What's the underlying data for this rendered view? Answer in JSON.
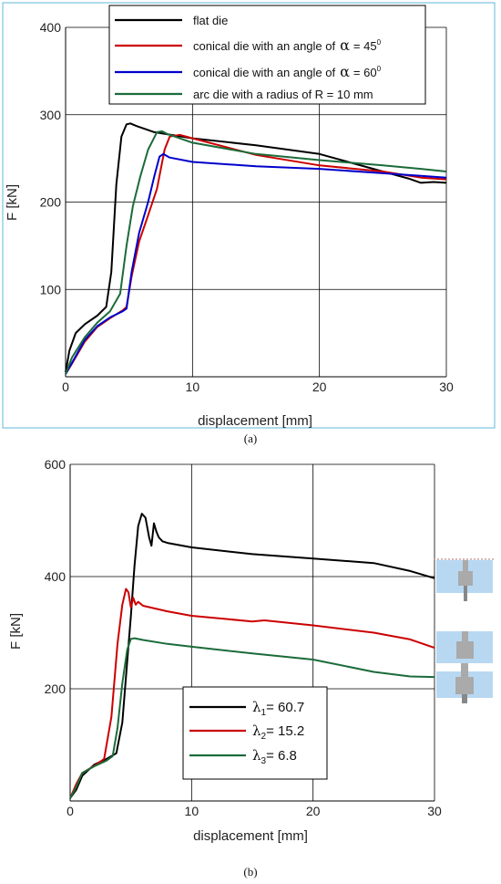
{
  "chart_data": [
    {
      "type": "line",
      "caption": "(a)",
      "xlabel": "displacement [mm]",
      "ylabel": "F [kN]",
      "xlim": [
        0,
        30
      ],
      "ylim": [
        0,
        400
      ],
      "x_ticks": [
        "0",
        "10",
        "20",
        "30"
      ],
      "y_ticks": [
        "100",
        "200",
        "300",
        "400"
      ],
      "grid": true,
      "legend_position": "top",
      "legend_alpha_symbol": "α",
      "series": [
        {
          "name": "flat die",
          "color": "#000000",
          "x": [
            0,
            0.3,
            0.8,
            1.5,
            2.5,
            3.2,
            3.6,
            4.0,
            4.4,
            4.8,
            5.1,
            5.6,
            7,
            10,
            15,
            20,
            25,
            27,
            28,
            29,
            30
          ],
          "y": [
            5,
            30,
            50,
            60,
            70,
            80,
            120,
            220,
            275,
            289,
            290,
            287,
            280,
            273,
            265,
            255,
            235,
            227,
            222,
            223,
            222
          ]
        },
        {
          "name": "conical die with an angle of",
          "value_text": "= 45",
          "superscript": "0",
          "color": "#cc0000",
          "x": [
            0,
            0.5,
            1.5,
            2.5,
            3.5,
            4.5,
            4.8,
            5.2,
            5.8,
            6.5,
            7.2,
            7.8,
            8.2,
            9,
            10,
            15,
            20,
            25,
            28,
            30
          ],
          "y": [
            3,
            15,
            40,
            57,
            67,
            76,
            80,
            115,
            155,
            185,
            215,
            260,
            275,
            277,
            273,
            254,
            242,
            235,
            228,
            226
          ]
        },
        {
          "name": "conical die with an angle of",
          "value_text": "= 60",
          "superscript": "0",
          "color": "#0000cc",
          "x": [
            0,
            0.5,
            1.5,
            2.5,
            3.5,
            4.5,
            4.8,
            5.2,
            5.8,
            6.5,
            7.0,
            7.4,
            7.7,
            8.2,
            10,
            15,
            20,
            25,
            28,
            30
          ],
          "y": [
            3,
            16,
            42,
            58,
            68,
            75,
            78,
            120,
            165,
            200,
            230,
            252,
            255,
            251,
            246,
            241,
            238,
            233,
            230,
            228
          ]
        },
        {
          "name": "arc die with a radius of R = 10 mm",
          "color": "#1b6b3a",
          "x": [
            0,
            0.5,
            1.5,
            2.5,
            3.5,
            4.3,
            4.8,
            5.3,
            5.9,
            6.5,
            7.2,
            7.6,
            8,
            10,
            15,
            20,
            25,
            28,
            30
          ],
          "y": [
            3,
            22,
            45,
            62,
            75,
            95,
            150,
            195,
            230,
            260,
            280,
            281,
            278,
            268,
            255,
            248,
            242,
            238,
            235
          ]
        }
      ]
    },
    {
      "type": "line",
      "caption": "(b)",
      "xlabel": "displacement [mm]",
      "ylabel": "F [kN]",
      "xlim": [
        0,
        30
      ],
      "ylim": [
        0,
        600
      ],
      "x_ticks": [
        "0",
        "10",
        "20",
        "30"
      ],
      "y_ticks": [
        "200",
        "400",
        "600"
      ],
      "grid": true,
      "legend_position": "bottom-center",
      "legend_symbol": "λ",
      "series": [
        {
          "name": "λ1",
          "sub": "1",
          "value_text": "= 60.7",
          "color": "#000000",
          "x": [
            0,
            0.5,
            1,
            2,
            3,
            3.8,
            4.3,
            4.7,
            5.0,
            5.3,
            5.6,
            5.9,
            6.2,
            6.5,
            6.7,
            6.9,
            7.1,
            7.3,
            7.6,
            8,
            10,
            15,
            20,
            25,
            28,
            30
          ],
          "y": [
            5,
            20,
            45,
            65,
            75,
            85,
            140,
            250,
            330,
            420,
            490,
            512,
            505,
            470,
            455,
            495,
            480,
            470,
            463,
            460,
            452,
            440,
            432,
            424,
            410,
            397
          ]
        },
        {
          "name": "λ2",
          "sub": "2",
          "value_text": "= 15.2",
          "color": "#cc0000",
          "x": [
            0,
            0.5,
            1,
            2,
            2.8,
            3.4,
            3.9,
            4.3,
            4.6,
            4.8,
            5.0,
            5.2,
            5.4,
            5.6,
            6,
            8,
            10,
            15,
            16,
            20,
            25,
            28,
            30
          ],
          "y": [
            5,
            30,
            50,
            63,
            75,
            150,
            280,
            350,
            378,
            372,
            345,
            362,
            350,
            355,
            348,
            338,
            330,
            320,
            322,
            313,
            300,
            288,
            273
          ]
        },
        {
          "name": "λ3",
          "sub": "3",
          "value_text": "= 6.8",
          "color": "#1b6b3a",
          "x": [
            0,
            0.5,
            1,
            2,
            3,
            3.5,
            3.9,
            4.3,
            4.7,
            5.0,
            5.3,
            6,
            8,
            10,
            15,
            20,
            25,
            28,
            30
          ],
          "y": [
            5,
            25,
            50,
            62,
            72,
            80,
            130,
            210,
            270,
            289,
            290,
            287,
            280,
            275,
            263,
            252,
            230,
            222,
            221
          ]
        }
      ]
    }
  ],
  "colors": {
    "frame_a": "#5fb8d8",
    "die_fill": "#b8d8f2",
    "punch_gray": "#aaaaaa"
  },
  "icons": [
    "die-schematic-small",
    "die-schematic-medium",
    "die-schematic-large"
  ]
}
